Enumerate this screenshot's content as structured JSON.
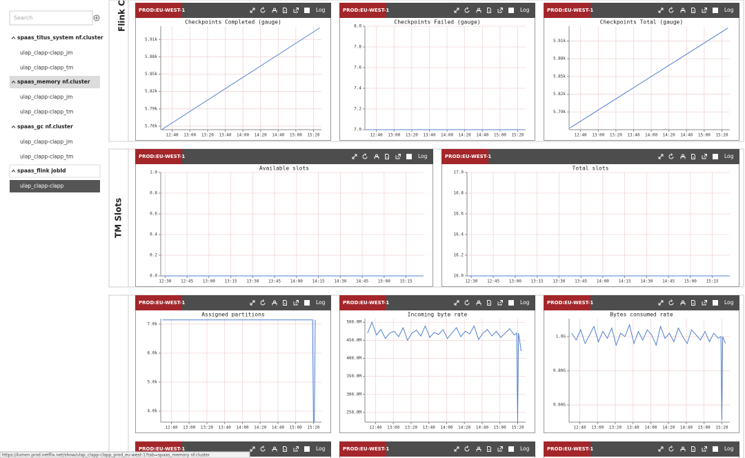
{
  "sidebar": {
    "search_placeholder": "Search",
    "groups": [
      {
        "name": "spaas_titus_system nf.cluster",
        "items": [
          "ulap_clapp-clapp_jm",
          "ulap_clapp-clapp_tm"
        ]
      },
      {
        "name": "spaas_memory nf.cluster",
        "items": [
          "ulap_clapp-clapp_jm",
          "ulap_clapp-clapp_tm"
        ]
      },
      {
        "name": "spaas_gc nf.cluster",
        "items": [
          "ulap_clapp-clapp_jm",
          "ulap_clapp-clapp_tm"
        ]
      },
      {
        "name": "spaas_flink jobId",
        "items": [
          "ulap_clapp-clapp"
        ]
      }
    ]
  },
  "sections": [
    "Flink Ch",
    "TM Slots"
  ],
  "toolbar": {
    "log": "Log"
  },
  "chart_data": [
    {
      "type": "line",
      "label": "PROD:EU-WEST-1",
      "title": "Checkpoints Completed (gauge)",
      "grid": true,
      "color": "#4f7fcf",
      "x": [
        "12:28",
        "15:27"
      ],
      "values": [
        5754,
        5930
      ],
      "xlim": [
        "12:27",
        "15:29"
      ],
      "xticks": [
        "12:40",
        "13:00",
        "13:20",
        "13:40",
        "14:00",
        "14:20",
        "14:40",
        "15:00",
        "15:20"
      ],
      "ylim": [
        5754,
        5933
      ],
      "yticks": [
        {
          "value": 5760,
          "label": "5.76k"
        },
        {
          "value": 5790,
          "label": "5.79k"
        },
        {
          "value": 5820,
          "label": "5.82k"
        },
        {
          "value": 5850,
          "label": "5.85k"
        },
        {
          "value": 5880,
          "label": "5.88k"
        },
        {
          "value": 5910,
          "label": "5.91k"
        }
      ]
    },
    {
      "type": "line",
      "label": "PROD:EU-WEST-1",
      "title": "Checkpoints Failed (gauge)",
      "grid": true,
      "color": "#4f7fcf",
      "x": [
        "12:28",
        "15:27"
      ],
      "values": [
        7,
        7
      ],
      "xlim": [
        "12:27",
        "15:29"
      ],
      "xticks": [
        "12:40",
        "13:00",
        "13:20",
        "13:40",
        "14:00",
        "14:20",
        "14:40",
        "15:00",
        "15:20"
      ],
      "ylim": [
        7,
        8
      ],
      "yticks": [
        {
          "value": 7,
          "label": "7.0"
        },
        7.2,
        7.4,
        7.6,
        7.8,
        {
          "value": 8,
          "label": "8.0"
        }
      ]
    },
    {
      "type": "line",
      "label": "PROD:EU-WEST-1",
      "title": "Checkpoints Total (gauge)",
      "grid": true,
      "color": "#4f7fcf",
      "x": [
        "12:28",
        "15:27"
      ],
      "values": [
        5763,
        5932
      ],
      "xlim": [
        "12:27",
        "15:29"
      ],
      "xticks": [
        "12:40",
        "13:00",
        "13:20",
        "13:40",
        "14:00",
        "14:20",
        "14:40",
        "15:00",
        "15:20"
      ],
      "ylim": [
        5760,
        5935
      ],
      "yticks": [
        {
          "value": 5790,
          "label": "5.79k"
        },
        {
          "value": 5820,
          "label": "5.82k"
        },
        {
          "value": 5850,
          "label": "5.85k"
        },
        {
          "value": 5880,
          "label": "5.88k"
        },
        {
          "value": 5910,
          "label": "5.91k"
        }
      ]
    },
    {
      "type": "line",
      "label": "PROD:EU-WEST-1",
      "title": "Available slots",
      "grid": true,
      "color": "#4f7fcf",
      "x": [
        "12:28",
        "15:27"
      ],
      "values": [
        0,
        0
      ],
      "xlim": [
        "12:27",
        "15:27"
      ],
      "xticks": [
        "12:30",
        "12:45",
        "13:00",
        "13:15",
        "13:30",
        "13:45",
        "14:00",
        "14:15",
        "14:30",
        "14:45",
        "15:00",
        "15:15"
      ],
      "ylim": [
        0,
        1
      ],
      "yticks": [
        {
          "value": 0,
          "label": "0.0"
        },
        0.2,
        0.4,
        0.6,
        0.8,
        {
          "value": 1,
          "label": "1.0"
        }
      ]
    },
    {
      "type": "line",
      "label": "PROD:EU-WEST-1",
      "title": "Total slots",
      "grid": true,
      "color": "#4f7fcf",
      "x": [
        "12:28",
        "15:27"
      ],
      "values": [
        16,
        16
      ],
      "xlim": [
        "12:27",
        "15:27"
      ],
      "xticks": [
        "12:30",
        "12:45",
        "13:00",
        "13:15",
        "13:30",
        "13:45",
        "14:00",
        "14:15",
        "14:30",
        "14:45",
        "15:00",
        "15:15"
      ],
      "ylim": [
        16,
        17
      ],
      "yticks": [
        {
          "value": 16,
          "label": "16.0"
        },
        16.2,
        16.4,
        16.6,
        16.8,
        {
          "value": 17,
          "label": "17.0"
        }
      ]
    },
    {
      "type": "line",
      "label": "PROD:EU-WEST-1",
      "title": "Assigned partitions",
      "grid": true,
      "color": "#4f7fcf",
      "x": [
        "12:30",
        "15:19",
        "15:20",
        "15:21",
        "15:22"
      ],
      "values": [
        7150,
        7150,
        3650,
        3650,
        7150
      ],
      "xlim": [
        "12:28",
        "15:29"
      ],
      "xticks": [
        "12:40",
        "13:00",
        "13:20",
        "13:40",
        "14:00",
        "14:20",
        "14:40",
        "15:00",
        "15:20"
      ],
      "ylim": [
        3620,
        7190
      ],
      "yticks": [
        {
          "value": 4000,
          "label": "4.0k"
        },
        {
          "value": 5000,
          "label": "5.0k"
        },
        {
          "value": 6000,
          "label": "6.0k"
        },
        {
          "value": 7000,
          "label": "7.0k"
        }
      ]
    },
    {
      "type": "line",
      "label": "PROD:EU-WEST-1",
      "title": "Incoming byte rate",
      "grid": true,
      "color": "#4f7fcf",
      "x": [
        "12:31",
        "12:36",
        "12:41",
        "12:46",
        "12:51",
        "12:56",
        "13:01",
        "13:06",
        "13:11",
        "13:16",
        "13:21",
        "13:26",
        "13:31",
        "13:36",
        "13:41",
        "13:46",
        "13:51",
        "13:56",
        "14:01",
        "14:06",
        "14:11",
        "14:16",
        "14:21",
        "14:26",
        "14:31",
        "14:36",
        "14:41",
        "14:46",
        "14:51",
        "14:56",
        "15:01",
        "15:06",
        "15:11",
        "15:16",
        "15:19",
        "15:20",
        "15:21",
        "15:24"
      ],
      "values": [
        470000000,
        500000000,
        465000000,
        480000000,
        455000000,
        470000000,
        475000000,
        460000000,
        485000000,
        450000000,
        470000000,
        478000000,
        462000000,
        490000000,
        458000000,
        472000000,
        466000000,
        480000000,
        455000000,
        470000000,
        485000000,
        460000000,
        475000000,
        468000000,
        490000000,
        452000000,
        470000000,
        480000000,
        462000000,
        475000000,
        458000000,
        470000000,
        482000000,
        465000000,
        470000000,
        222000000,
        470000000,
        420000000
      ],
      "xlim": [
        "12:28",
        "15:29"
      ],
      "xticks": [
        "12:40",
        "13:00",
        "13:20",
        "13:40",
        "14:00",
        "14:20",
        "14:40",
        "15:00",
        "15:20"
      ],
      "ylim": [
        223000000,
        510000000
      ],
      "yticks": [
        {
          "value": 250000000,
          "label": "250.0M"
        },
        {
          "value": 300000000,
          "label": "300.0M"
        },
        {
          "value": 350000000,
          "label": "350.0M"
        },
        {
          "value": 400000000,
          "label": "400.0M"
        },
        {
          "value": 450000000,
          "label": "450.0M"
        },
        {
          "value": 500000000,
          "label": "500.0M"
        }
      ]
    },
    {
      "type": "line",
      "label": "PROD:EU-WEST-1",
      "title": "Bytes consumed rate",
      "grid": true,
      "color": "#4f7fcf",
      "x": [
        "12:31",
        "12:36",
        "12:41",
        "12:46",
        "12:51",
        "12:56",
        "13:01",
        "13:06",
        "13:11",
        "13:16",
        "13:21",
        "13:26",
        "13:31",
        "13:36",
        "13:41",
        "13:46",
        "13:51",
        "13:56",
        "14:01",
        "14:06",
        "14:11",
        "14:16",
        "14:21",
        "14:26",
        "14:31",
        "14:36",
        "14:41",
        "14:46",
        "14:51",
        "14:56",
        "15:01",
        "15:06",
        "15:11",
        "15:16",
        "15:19",
        "15:20",
        "15:21",
        "15:24"
      ],
      "values": [
        1020000000,
        980000000,
        1040000000,
        960000000,
        1010000000,
        1060000000,
        970000000,
        1030000000,
        990000000,
        1050000000,
        950000000,
        1020000000,
        1000000000,
        1070000000,
        960000000,
        1030000000,
        980000000,
        1040000000,
        1010000000,
        950000000,
        1060000000,
        990000000,
        1020000000,
        970000000,
        1050000000,
        1000000000,
        960000000,
        1040000000,
        1010000000,
        980000000,
        1030000000,
        970000000,
        1020000000,
        990000000,
        1000000000,
        510000000,
        1000000000,
        960000000
      ],
      "xlim": [
        "12:28",
        "15:29"
      ],
      "xticks": [
        "12:40",
        "13:00",
        "13:20",
        "13:40",
        "14:00",
        "14:20",
        "14:40",
        "15:00",
        "15:20"
      ],
      "ylim": [
        500000000,
        1105000000
      ],
      "yticks": [
        {
          "value": 600000000,
          "label": "0.60G"
        },
        {
          "value": 800000000,
          "label": "0.80G"
        },
        {
          "value": 1000000000,
          "label": "1.0G"
        }
      ]
    }
  ],
  "partial_panels": [
    {
      "label": "PROD:EU-WEST-1"
    },
    {
      "label": "PROD:EU-WEST-1"
    },
    {
      "label": "PROD:EU-WEST-1"
    }
  ],
  "status_url": "https://lumen.prod.netflix.net/show/ulap_clapp-clapp_prod_eu-west-1?tab=spaas_memory nf.cluster"
}
